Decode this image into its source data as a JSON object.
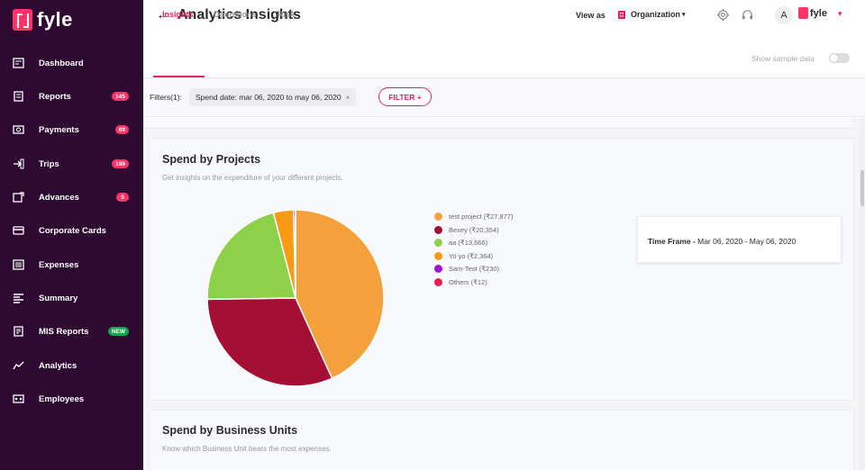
{
  "app": {
    "logo_text": "fyle"
  },
  "sidebar": {
    "items": [
      {
        "label": "Dashboard",
        "icon": "dashboard-icon",
        "badge": ""
      },
      {
        "label": "Reports",
        "icon": "reports-icon",
        "badge": "145"
      },
      {
        "label": "Payments",
        "icon": "payments-icon",
        "badge": "69"
      },
      {
        "label": "Trips",
        "icon": "trips-icon",
        "badge": "199"
      },
      {
        "label": "Advances",
        "icon": "advances-icon",
        "badge": "5"
      },
      {
        "label": "Corporate Cards",
        "icon": "card-icon",
        "badge": ""
      },
      {
        "label": "Expenses",
        "icon": "expenses-icon",
        "badge": ""
      },
      {
        "label": "Summary",
        "icon": "summary-icon",
        "badge": ""
      },
      {
        "label": "MIS Reports",
        "icon": "mis-reports-icon",
        "badge": "NEW"
      },
      {
        "label": "Analytics",
        "icon": "analytics-icon",
        "badge": ""
      },
      {
        "label": "Employees",
        "icon": "employees-icon",
        "badge": ""
      }
    ]
  },
  "header": {
    "title": "Analytics Insights",
    "view_as_label": "View as",
    "org_select": "Organization",
    "avatar_letter": "A",
    "brand_text": "fyle"
  },
  "tabs": [
    {
      "label": "Insights",
      "active": true
    },
    {
      "label": "Operations",
      "active": false
    },
    {
      "label": "Risk",
      "active": false
    }
  ],
  "sample_toggle": {
    "label": "Show sample data",
    "on": false
  },
  "filters": {
    "label": "Filters(1):",
    "chips": [
      "Spend date: mar 06, 2020 to may 06, 2020"
    ],
    "add_button": "FILTER +"
  },
  "cards": {
    "projects": {
      "title": "Spend by Projects",
      "subtitle": "Get insights on the expenditure of your different projects."
    },
    "business_units": {
      "title": "Spend by Business Units",
      "subtitle": "Know which Business Unit bears the most expenses."
    }
  },
  "tooltip": {
    "label": "Time Frame - ",
    "value": "Mar 06, 2020 - May 06, 2020"
  },
  "colors": {
    "sidebar_bg": "#2e0a33",
    "accent": "#e0245e",
    "badge": "#ff3366",
    "badge_new": "#19a34b"
  },
  "chart_data": {
    "type": "pie",
    "title": "Spend by Projects",
    "series": [
      {
        "name": "test project",
        "value": 27877,
        "color": "#f4a03c",
        "legend": "test project (₹27,877)"
      },
      {
        "name": "Bexey",
        "value": 20354,
        "color": "#a50f35",
        "legend": "Bexey (₹20,354)"
      },
      {
        "name": "aa",
        "value": 13666,
        "color": "#8dd04a",
        "legend": "aa (₹13,666)"
      },
      {
        "name": "Yo yo",
        "value": 2364,
        "color": "#f89a13",
        "legend": "Yo yo (₹2,364)"
      },
      {
        "name": "Sam-Test",
        "value": 230,
        "color": "#a313d6",
        "legend": "Sam-Test (₹230)"
      },
      {
        "name": "Others",
        "value": 12,
        "color": "#ee1b4e",
        "legend": "Others (₹12)"
      }
    ],
    "legend_position": "right"
  }
}
